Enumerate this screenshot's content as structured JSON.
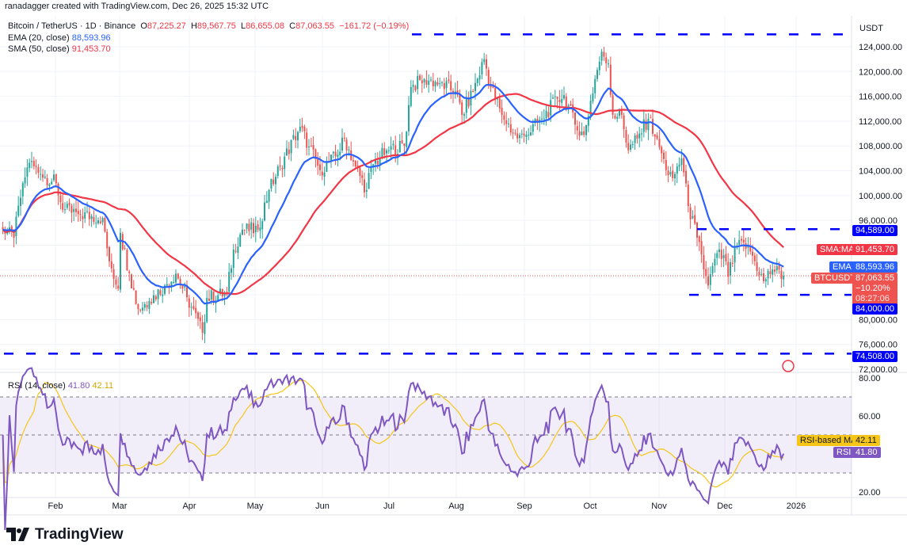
{
  "header": {
    "credit": "ranadagger created with TradingView.com, Dec 26, 2025 15:32 UTC",
    "symbol": "Bitcoin / TetherUS · 1D · Binance",
    "ohlc": {
      "o_label": "O",
      "o": "87,225.27",
      "h_label": "H",
      "h": "89,567.75",
      "l_label": "L",
      "l": "86,655.08",
      "c_label": "C",
      "c": "87,063.55",
      "change": "−161.72 (−0.19%)"
    },
    "ema_label": "EMA (20, close)",
    "ema_value": "88,593.96",
    "sma_label": "SMA (50, close)",
    "sma_value": "91,453.70",
    "rsi_label": "RSI (14, close)",
    "rsi_value": "41.80",
    "rsi_ma_value": "42.11"
  },
  "axis": {
    "currency": "USDT",
    "price_ticks": [
      "124,000.00",
      "120,000.00",
      "116,000.00",
      "112,000.00",
      "108,000.00",
      "104,000.00",
      "100,000.00",
      "96,000.00",
      "80,000.00",
      "76,000.00",
      "72,000.00"
    ],
    "rsi_ticks": [
      "80.00",
      "60.00",
      "20.00"
    ],
    "months": [
      "Feb",
      "Mar",
      "Apr",
      "May",
      "Jun",
      "Jul",
      "Aug",
      "Sep",
      "Oct",
      "Nov",
      "Dec",
      "2026"
    ]
  },
  "tags": {
    "level_94589": "94,589.00",
    "sma_tag": "SMA:MA",
    "sma_value": "91,453.70",
    "ema_tag": "EMA",
    "ema_value": "88,593.96",
    "symbol_tag": "BTCUSDT",
    "last_price": "87,063.55",
    "last_change": "−10.20%",
    "countdown": "08:27:06",
    "level_84000": "84,000.00",
    "level_74508": "74,508.00",
    "rsi_ma_tag": "RSI-based MA",
    "rsi_ma_value": "42.11",
    "rsi_tag": "RSI",
    "rsi_value": "41.80"
  },
  "brand": "TradingView",
  "colors": {
    "up": "#26a69a",
    "down": "#ef5350",
    "ema": "#2962ff",
    "sma": "#f23645",
    "rsi": "#7e57c2",
    "rsi_ma": "#f5c518",
    "levels": "#0000ff"
  },
  "chart_data": {
    "type": "candlestick",
    "title": "Bitcoin / TetherUS · 1D · Binance",
    "ylim": [
      72000,
      126500
    ],
    "horizontal_levels": [
      126000,
      94589,
      84000,
      74508
    ],
    "close_path": [
      [
        "2025-01-08",
        94500
      ],
      [
        "2025-01-13",
        93200
      ],
      [
        "2025-01-17",
        102000
      ],
      [
        "2025-01-20",
        105300
      ],
      [
        "2025-01-25",
        103500
      ],
      [
        "2025-02-01",
        102000
      ],
      [
        "2025-02-04",
        97700
      ],
      [
        "2025-02-11",
        97000
      ],
      [
        "2025-02-22",
        96400
      ],
      [
        "2025-02-25",
        89400
      ],
      [
        "2025-03-01",
        85000
      ],
      [
        "2025-03-02",
        94000
      ],
      [
        "2025-03-06",
        87500
      ],
      [
        "2025-03-10",
        81700
      ],
      [
        "2025-03-15",
        83000
      ],
      [
        "2025-03-22",
        85500
      ],
      [
        "2025-03-27",
        87400
      ],
      [
        "2025-04-01",
        83600
      ],
      [
        "2025-04-08",
        77900
      ],
      [
        "2025-04-10",
        83500
      ],
      [
        "2025-04-19",
        84300
      ],
      [
        "2025-04-22",
        91300
      ],
      [
        "2025-04-26",
        94500
      ],
      [
        "2025-05-03",
        94500
      ],
      [
        "2025-05-08",
        100900
      ],
      [
        "2025-05-13",
        104700
      ],
      [
        "2025-05-22",
        111100
      ],
      [
        "2025-05-26",
        107900
      ],
      [
        "2025-05-31",
        104100
      ],
      [
        "2025-06-08",
        106600
      ],
      [
        "2025-06-11",
        109200
      ],
      [
        "2025-06-16",
        104700
      ],
      [
        "2025-06-21",
        100900
      ],
      [
        "2025-06-23",
        104700
      ],
      [
        "2025-06-30",
        107300
      ],
      [
        "2025-07-08",
        108000
      ],
      [
        "2025-07-11",
        117500
      ],
      [
        "2025-07-17",
        118800
      ],
      [
        "2025-07-24",
        118100
      ],
      [
        "2025-07-31",
        116800
      ],
      [
        "2025-08-03",
        113000
      ],
      [
        "2025-08-08",
        116800
      ],
      [
        "2025-08-13",
        122000
      ],
      [
        "2025-08-16",
        117500
      ],
      [
        "2025-08-21",
        113000
      ],
      [
        "2025-08-28",
        109200
      ],
      [
        "2025-09-01",
        109800
      ],
      [
        "2025-09-08",
        112400
      ],
      [
        "2025-09-15",
        115600
      ],
      [
        "2025-09-18",
        116200
      ],
      [
        "2025-09-24",
        110500
      ],
      [
        "2025-09-27",
        109800
      ],
      [
        "2025-10-02",
        118800
      ],
      [
        "2025-10-05",
        123200
      ],
      [
        "2025-10-08",
        121300
      ],
      [
        "2025-10-10",
        113000
      ],
      [
        "2025-10-14",
        113000
      ],
      [
        "2025-10-17",
        107300
      ],
      [
        "2025-10-21",
        109200
      ],
      [
        "2025-10-26",
        112400
      ],
      [
        "2025-10-30",
        109200
      ],
      [
        "2025-11-03",
        104100
      ],
      [
        "2025-11-06",
        102800
      ],
      [
        "2025-11-10",
        106000
      ],
      [
        "2025-11-13",
        98300
      ],
      [
        "2025-11-17",
        93200
      ],
      [
        "2025-11-20",
        88100
      ],
      [
        "2025-11-22",
        85500
      ],
      [
        "2025-11-26",
        90700
      ],
      [
        "2025-11-30",
        89400
      ],
      [
        "2025-12-01",
        86900
      ],
      [
        "2025-12-05",
        91900
      ],
      [
        "2025-12-10",
        91900
      ],
      [
        "2025-12-13",
        89400
      ],
      [
        "2025-12-17",
        86200
      ],
      [
        "2025-12-21",
        88100
      ],
      [
        "2025-12-26",
        87063.55
      ]
    ],
    "indicators": [
      "EMA 20",
      "SMA 50",
      "RSI 14",
      "RSI-based MA"
    ],
    "rsi_levels": [
      70,
      50,
      30
    ]
  }
}
